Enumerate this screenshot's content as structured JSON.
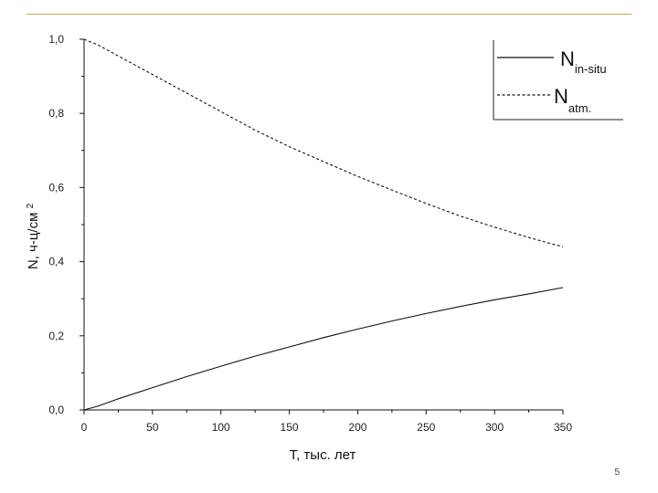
{
  "page_number": "5",
  "chart_data": {
    "type": "line",
    "xlabel": "Т, тыс. лет",
    "ylabel": "N, ч-ц/см",
    "ylabel_sup": "2",
    "xlim": [
      0,
      350
    ],
    "ylim": [
      0.0,
      1.0
    ],
    "xticks": [
      0,
      50,
      100,
      150,
      200,
      250,
      300,
      350
    ],
    "xtick_labels": [
      "0",
      "50",
      "100",
      "150",
      "200",
      "250",
      "300",
      "350"
    ],
    "yticks": [
      0.0,
      0.2,
      0.4,
      0.6,
      0.8,
      1.0
    ],
    "ytick_labels": [
      "0,0",
      "0,2",
      "0,4",
      "0,6",
      "0,8",
      "1,0"
    ],
    "grid": false,
    "legend_position": "top-right",
    "series": [
      {
        "name_main": "N",
        "name_sub": "in-situ",
        "style": "solid",
        "x": [
          0,
          10,
          25,
          50,
          75,
          100,
          125,
          150,
          175,
          200,
          225,
          250,
          275,
          300,
          325,
          350
        ],
        "y": [
          0.0,
          0.01,
          0.03,
          0.06,
          0.09,
          0.118,
          0.145,
          0.17,
          0.195,
          0.218,
          0.24,
          0.26,
          0.279,
          0.297,
          0.313,
          0.33
        ]
      },
      {
        "name_main": "N",
        "name_sub": "atm.",
        "style": "dashed",
        "x": [
          0,
          10,
          25,
          50,
          75,
          100,
          125,
          150,
          175,
          200,
          225,
          250,
          275,
          300,
          325,
          350
        ],
        "y": [
          1.0,
          0.985,
          0.955,
          0.905,
          0.855,
          0.805,
          0.755,
          0.71,
          0.67,
          0.63,
          0.593,
          0.557,
          0.523,
          0.493,
          0.465,
          0.44
        ]
      }
    ]
  }
}
